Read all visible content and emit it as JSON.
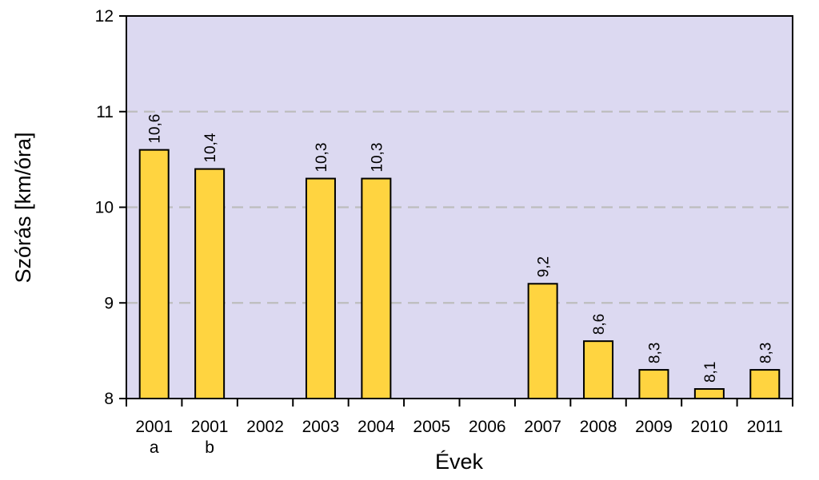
{
  "chart_data": {
    "type": "bar",
    "categories": [
      "2001",
      "2001",
      "2002",
      "2003",
      "2004",
      "2005",
      "2006",
      "2007",
      "2008",
      "2009",
      "2010",
      "2011"
    ],
    "category_sublabels": [
      "a",
      "b",
      "",
      "",
      "",
      "",
      "",
      "",
      "",
      "",
      "",
      ""
    ],
    "values": [
      10.6,
      10.4,
      null,
      10.3,
      10.3,
      null,
      null,
      9.2,
      8.6,
      8.3,
      8.1,
      8.3
    ],
    "data_labels": [
      "10,6",
      "10,4",
      "",
      "10,3",
      "10,3",
      "",
      "",
      "9,2",
      "8,6",
      "8,3",
      "8,1",
      "8,3"
    ],
    "title": "",
    "xlabel": "Évek",
    "ylabel": "Szórás [km/óra]",
    "ylim": [
      8,
      12
    ],
    "yticks": [
      8,
      9,
      10,
      11,
      12
    ],
    "ytick_labels": [
      "8",
      "9",
      "10",
      "11",
      "12"
    ],
    "grid": "horizontal dashed",
    "colors": {
      "bar_fill": "#FFD440",
      "bar_stroke": "#000000",
      "plot_background": "#DCD9F1",
      "grid": "#BDBDBD",
      "axis": "#000000"
    }
  }
}
